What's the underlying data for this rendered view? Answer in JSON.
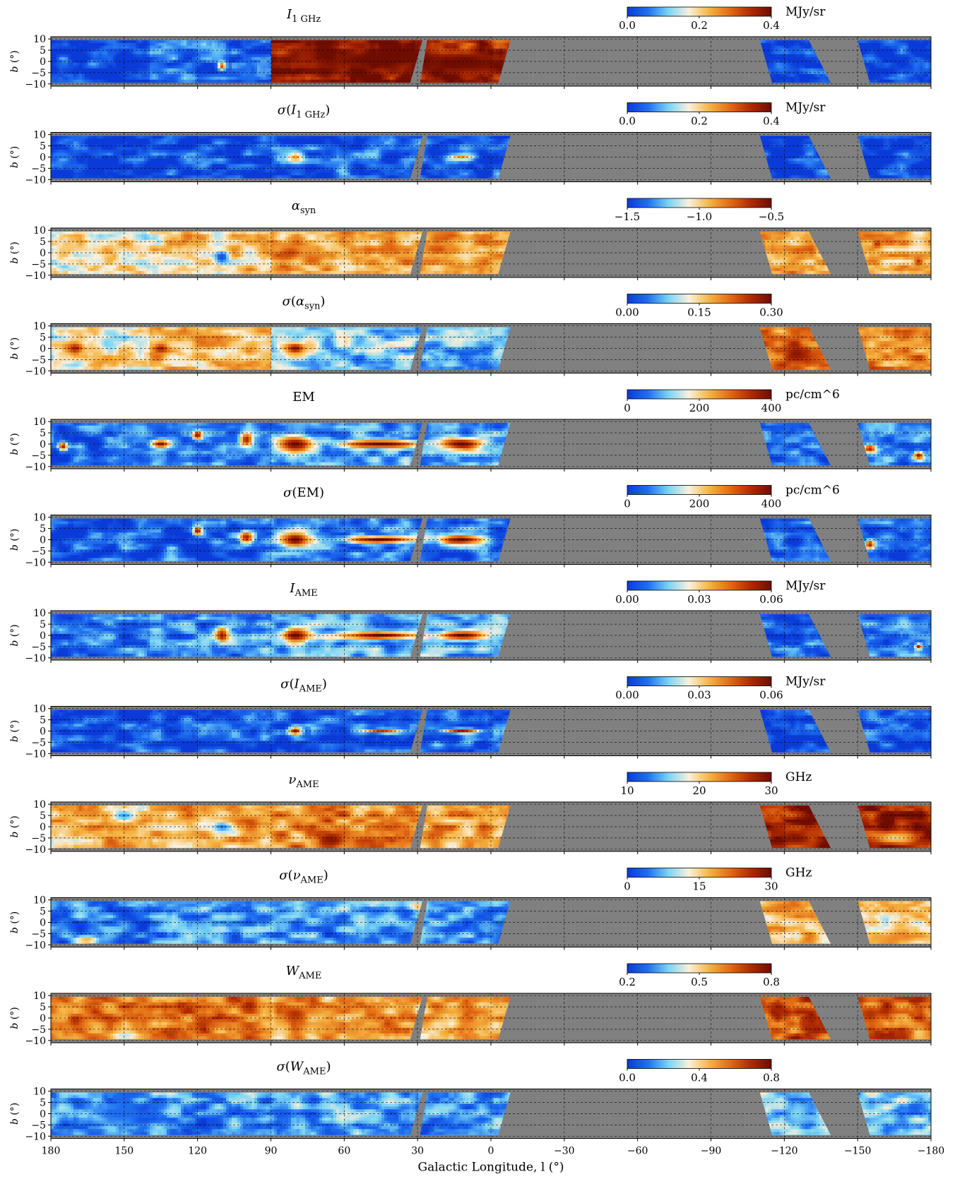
{
  "chart_data": {
    "type": "heatmap",
    "xlabel": "Galactic Longitude, l (°)",
    "ylabel": "b (°)",
    "xlim": [
      180,
      -180
    ],
    "ylim": [
      -11,
      11
    ],
    "x_ticks": [
      180,
      150,
      120,
      90,
      60,
      30,
      0,
      -30,
      -60,
      -90,
      -120,
      -150,
      -180
    ],
    "x_tick_labels": [
      "180",
      "150",
      "120",
      "90",
      "60",
      "30",
      "0",
      "−30",
      "−60",
      "−90",
      "−120",
      "−150",
      "−180"
    ],
    "y_ticks": [
      10,
      5,
      0,
      -5,
      -10
    ],
    "y_tick_labels": [
      "10",
      "5",
      "0",
      "−5",
      "−10"
    ],
    "grid": true,
    "colormap": {
      "stops": [
        "#0a3ad8",
        "#1f6ff0",
        "#79d4f5",
        "#fbf1dc",
        "#f5b341",
        "#e26a14",
        "#b02a00",
        "#6e0c00"
      ],
      "mask_color": "#808080"
    },
    "coverage_regions": [
      {
        "name": "outer-galaxy",
        "l_range": [
          180,
          31
        ]
      },
      {
        "name": "inner-galaxy",
        "l_range": [
          26,
          -8
        ]
      },
      {
        "name": "south-west-1",
        "l_range": [
          -110,
          -139
        ]
      },
      {
        "name": "south-west-2",
        "l_range": [
          -150,
          -180
        ]
      }
    ],
    "panels": [
      {
        "key": "I1GHz",
        "title": "I",
        "title_sub": "1 GHz",
        "title_wrap": "",
        "cb_ticks": [
          "0.0",
          "0.2",
          "0.4"
        ],
        "unit": "MJy/sr",
        "levels": [
          0.03,
          0.1,
          0.95,
          0.85,
          0.05,
          0.05
        ],
        "features": [
          [
            47,
            1,
            1.0,
            28,
            4
          ],
          [
            10,
            -1,
            1.0,
            25,
            5
          ],
          [
            77,
            2,
            0.9,
            4,
            4
          ],
          [
            110,
            -2,
            0.8,
            2,
            2
          ]
        ]
      },
      {
        "key": "sigI1GHz",
        "title": "I",
        "title_sub": "1 GHz",
        "title_wrap": "σ",
        "cb_ticks": [
          "0.0",
          "0.2",
          "0.4"
        ],
        "unit": "MJy/sr",
        "levels": [
          0.04,
          0.06,
          0.1,
          0.1,
          0.04,
          0.04
        ],
        "features": [
          [
            80,
            0,
            0.6,
            4,
            3
          ],
          [
            12,
            0,
            0.6,
            6,
            1.5
          ],
          [
            48,
            0,
            0.3,
            3,
            1
          ]
        ]
      },
      {
        "key": "alpha_syn",
        "title": "α",
        "title_sub": "syn",
        "title_wrap": "",
        "cb_ticks": [
          "−1.5",
          "−1.0",
          "−0.5"
        ],
        "unit": "",
        "levels": [
          0.45,
          0.5,
          0.6,
          0.6,
          0.62,
          0.55
        ],
        "features": [
          [
            82,
            0,
            0.8,
            6,
            4
          ],
          [
            110,
            -2,
            0.05,
            3,
            3
          ],
          [
            -175,
            -4,
            0.85,
            2,
            2
          ],
          [
            -158,
            4,
            0.85,
            2,
            2
          ]
        ]
      },
      {
        "key": "sig_alpha_syn",
        "title": "α",
        "title_sub": "syn",
        "title_wrap": "σ",
        "cb_ticks": [
          "0.00",
          "0.15",
          "0.30"
        ],
        "unit": "",
        "levels": [
          0.45,
          0.55,
          0.3,
          0.25,
          0.7,
          0.65
        ],
        "features": [
          [
            80,
            0,
            0.95,
            5,
            3
          ],
          [
            170,
            0,
            0.9,
            4,
            3
          ],
          [
            135,
            0,
            0.9,
            3,
            2
          ],
          [
            -125,
            -2,
            0.95,
            6,
            4
          ]
        ]
      },
      {
        "key": "EM",
        "title": "EM",
        "title_sub": "",
        "title_wrap": "",
        "cb_ticks": [
          "0",
          "200",
          "400"
        ],
        "unit": "pc/cm^6",
        "levels": [
          0.12,
          0.15,
          0.2,
          0.2,
          0.15,
          0.18
        ],
        "features": [
          [
            80,
            0,
            1.0,
            8,
            4
          ],
          [
            45,
            0,
            1.0,
            18,
            2
          ],
          [
            12,
            0,
            1.0,
            10,
            3
          ],
          [
            135,
            0,
            0.95,
            4,
            2
          ],
          [
            120,
            4,
            0.95,
            2,
            2
          ],
          [
            100,
            2,
            0.9,
            3,
            3
          ],
          [
            175,
            -1,
            0.9,
            2,
            2
          ],
          [
            -155,
            -2,
            0.9,
            3,
            2
          ],
          [
            -175,
            -5,
            0.9,
            2,
            2
          ]
        ]
      },
      {
        "key": "sigEM",
        "title": "EM",
        "title_sub": "",
        "title_wrap": "σ",
        "cb_ticks": [
          "0",
          "200",
          "400"
        ],
        "unit": "pc/cm^6",
        "levels": [
          0.08,
          0.1,
          0.15,
          0.15,
          0.08,
          0.1
        ],
        "features": [
          [
            80,
            0,
            1.0,
            7,
            4
          ],
          [
            45,
            0,
            1.0,
            16,
            1.8
          ],
          [
            12,
            0,
            1.0,
            10,
            2.5
          ],
          [
            120,
            4,
            0.95,
            2,
            2
          ],
          [
            100,
            1,
            0.9,
            3,
            3
          ],
          [
            -155,
            -2,
            0.9,
            2,
            2
          ]
        ]
      },
      {
        "key": "I_AME",
        "title": "I",
        "title_sub": "AME",
        "title_wrap": "",
        "cb_ticks": [
          "0.00",
          "0.03",
          "0.06"
        ],
        "unit": "MJy/sr",
        "levels": [
          0.12,
          0.18,
          0.25,
          0.25,
          0.12,
          0.15
        ],
        "features": [
          [
            80,
            0,
            1.0,
            6,
            3
          ],
          [
            45,
            0,
            1.0,
            16,
            1.8
          ],
          [
            12,
            0,
            1.0,
            10,
            2
          ],
          [
            110,
            0,
            0.9,
            3,
            4
          ],
          [
            -175,
            -5,
            0.9,
            1.5,
            1.5
          ]
        ]
      },
      {
        "key": "sig_I_AME",
        "title": "I",
        "title_sub": "AME",
        "title_wrap": "σ",
        "cb_ticks": [
          "0.00",
          "0.03",
          "0.06"
        ],
        "unit": "MJy/sr",
        "levels": [
          0.06,
          0.08,
          0.1,
          0.1,
          0.06,
          0.06
        ],
        "features": [
          [
            80,
            0,
            0.95,
            3,
            2
          ],
          [
            45,
            0,
            0.8,
            8,
            1
          ],
          [
            12,
            0,
            0.9,
            8,
            1.2
          ]
        ]
      },
      {
        "key": "nu_AME",
        "title": "ν",
        "title_sub": "AME",
        "title_wrap": "",
        "cb_ticks": [
          "10",
          "20",
          "30"
        ],
        "unit": "GHz",
        "levels": [
          0.55,
          0.6,
          0.65,
          0.6,
          0.9,
          0.9
        ],
        "features": [
          [
            150,
            5,
            0.2,
            6,
            3
          ],
          [
            110,
            0,
            0.15,
            5,
            3
          ],
          [
            65,
            -6,
            0.95,
            6,
            3
          ],
          [
            -125,
            -5,
            0.95,
            6,
            3
          ],
          [
            -165,
            -5,
            0.5,
            10,
            3
          ]
        ]
      },
      {
        "key": "sig_nu_AME",
        "title": "ν",
        "title_sub": "AME",
        "title_wrap": "σ",
        "cb_ticks": [
          "0",
          "15",
          "30"
        ],
        "unit": "GHz",
        "levels": [
          0.15,
          0.2,
          0.2,
          0.2,
          0.55,
          0.5
        ],
        "features": [
          [
            165,
            -8,
            0.6,
            6,
            2
          ],
          [
            30,
            7,
            0.55,
            4,
            2
          ],
          [
            -120,
            7,
            0.7,
            8,
            3
          ],
          [
            -165,
            -7,
            0.65,
            8,
            3
          ]
        ]
      },
      {
        "key": "W_AME",
        "title": "W",
        "title_sub": "AME",
        "title_wrap": "",
        "cb_ticks": [
          "0.2",
          "0.5",
          "0.8"
        ],
        "unit": "",
        "levels": [
          0.68,
          0.7,
          0.6,
          0.58,
          0.75,
          0.72
        ],
        "features": [
          [
            80,
            2,
            0.85,
            6,
            4
          ],
          [
            170,
            -1,
            0.85,
            3,
            3
          ],
          [
            -155,
            1,
            0.85,
            5,
            4
          ],
          [
            150,
            -8,
            0.35,
            8,
            2
          ]
        ]
      },
      {
        "key": "sig_W_AME",
        "title": "W",
        "title_sub": "AME",
        "title_wrap": "σ",
        "cb_ticks": [
          "0.0",
          "0.4",
          "0.8"
        ],
        "unit": "",
        "levels": [
          0.18,
          0.2,
          0.22,
          0.2,
          0.28,
          0.28
        ],
        "features": [
          [
            150,
            0,
            0.13,
            10,
            5
          ],
          [
            -125,
            0,
            0.3,
            5,
            5
          ]
        ]
      }
    ]
  }
}
